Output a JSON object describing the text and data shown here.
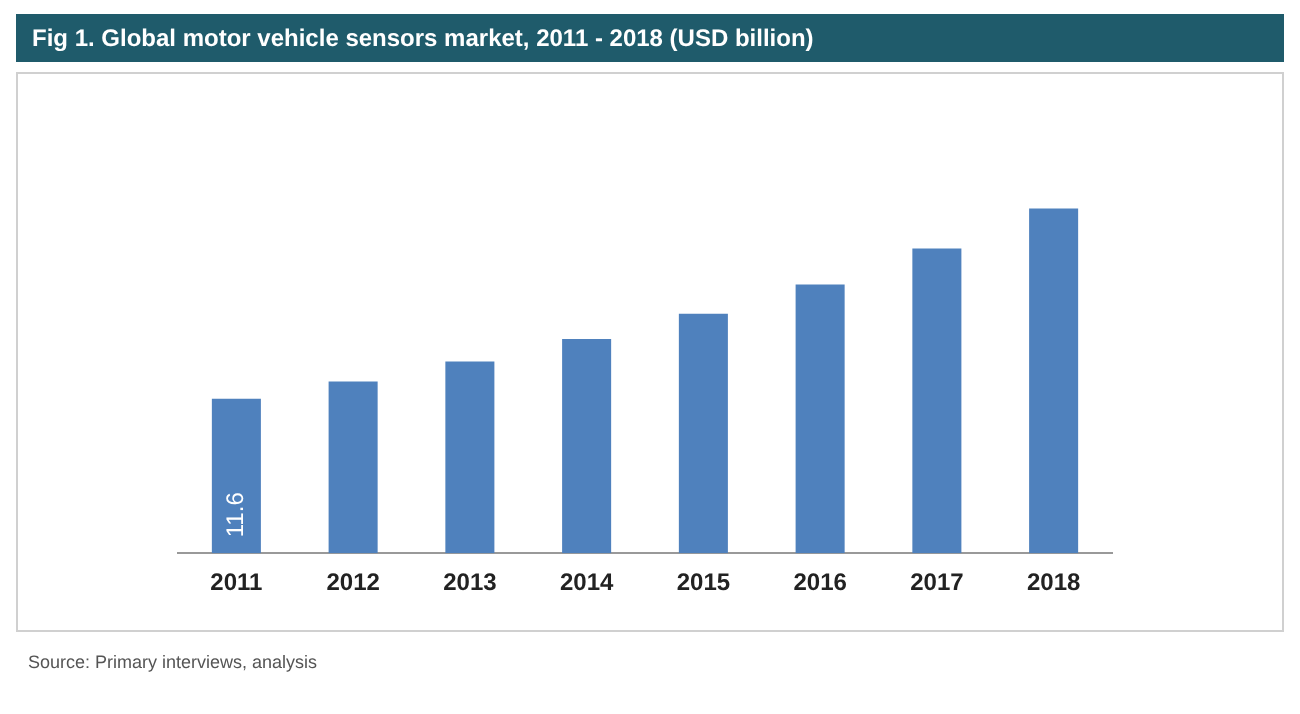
{
  "chart_data": {
    "type": "bar",
    "title": "Fig 1.  Global motor vehicle sensors market, 2011 - 2018 (USD billion)",
    "categories": [
      "2011",
      "2012",
      "2013",
      "2014",
      "2015",
      "2016",
      "2017",
      "2018"
    ],
    "values": [
      11.6,
      12.9,
      14.4,
      16.1,
      18.0,
      20.2,
      22.9,
      25.9
    ],
    "value_labels": [
      "11.6",
      null,
      null,
      null,
      null,
      null,
      null,
      null
    ],
    "color": "#4f81bd",
    "grid": false,
    "legend": false,
    "annotations": [
      "Source: Primary interviews, analysis"
    ]
  }
}
